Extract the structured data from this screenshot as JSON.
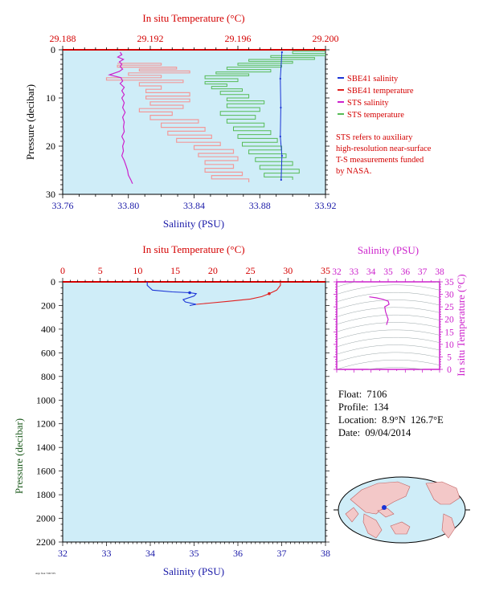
{
  "colors": {
    "plot_bg": "#cfedf8",
    "frame_red": "#d40000",
    "frame_blue": "#1a1aa8",
    "frame_green": "#1f5c1f",
    "magenta": "#cc22cc",
    "sbe_salinity": "#1a33d6",
    "sbe_temperature": "#e02020",
    "sts_salinity": "#cc22cc",
    "sts_temperature": "#55bb55",
    "sts_temperature_upper": "#f29a9a"
  },
  "legend": {
    "items": [
      {
        "label": "SBE41 salinity",
        "color": "#1a33d6"
      },
      {
        "label": "SBE41 temperature",
        "color": "#e02020"
      },
      {
        "label": "STS salinity",
        "color": "#cc22cc"
      },
      {
        "label": "STS temperature",
        "color": "#55bb55"
      }
    ],
    "note_lines": [
      "STS refers to auxiliary",
      "high-resolution near-surface",
      "T-S measurements funded",
      "by NASA."
    ]
  },
  "float_info": {
    "float": "Float:  7106",
    "profile": "Profile:  134",
    "location": "Location:  8.9°N  126.7°E",
    "date": "Date:  09/04/2014"
  },
  "stamp_text": "Argo float 7106 STS",
  "chart_data": [
    {
      "type": "line",
      "panel": "near-surface",
      "title": "",
      "top_axis_label": "In situ Temperature (°C)",
      "top_ticks": [
        "29.188",
        "29.192",
        "29.196",
        "29.200"
      ],
      "top_lim": [
        29.188,
        29.2
      ],
      "xlabel": "Salinity (PSU)",
      "x_ticks": [
        "33.76",
        "33.80",
        "33.84",
        "33.88",
        "33.92"
      ],
      "xlim": [
        33.76,
        33.92
      ],
      "ylabel": "Pressure (decibar)",
      "y_ticks": [
        "0",
        "10",
        "20",
        "30"
      ],
      "ylim": [
        0,
        30
      ],
      "y_inverted": true,
      "grid": false,
      "legend_position": "right",
      "series": [
        {
          "name": "SBE41 salinity",
          "axis": "salinity",
          "points": [
            [
              33.8935,
              0.5
            ],
            [
              33.8925,
              6
            ],
            [
              33.8928,
              12
            ],
            [
              33.8925,
              18
            ],
            [
              33.8935,
              22
            ],
            [
              33.893,
              27
            ]
          ]
        },
        {
          "name": "SBE41 temperature",
          "axis": "temperature",
          "points": [
            [
              29.2,
              0.5
            ]
          ]
        },
        {
          "name": "STS salinity",
          "axis": "salinity",
          "points": [
            [
              33.795,
              0.5
            ],
            [
              33.796,
              1
            ],
            [
              33.7935,
              1.5
            ],
            [
              33.797,
              2
            ],
            [
              33.7945,
              2.5
            ],
            [
              33.796,
              3
            ],
            [
              33.795,
              3.5
            ],
            [
              33.7965,
              4
            ],
            [
              33.7945,
              4.5
            ],
            [
              33.7885,
              5.2
            ],
            [
              33.7955,
              5.8
            ],
            [
              33.7965,
              6.5
            ],
            [
              33.795,
              7
            ],
            [
              33.7975,
              7.8
            ],
            [
              33.796,
              8.5
            ],
            [
              33.7975,
              9.3
            ],
            [
              33.796,
              10
            ],
            [
              33.7975,
              11
            ],
            [
              33.7965,
              12
            ],
            [
              33.798,
              13
            ],
            [
              33.7965,
              14
            ],
            [
              33.7975,
              15
            ],
            [
              33.797,
              16
            ],
            [
              33.7975,
              17
            ],
            [
              33.796,
              18
            ],
            [
              33.7975,
              19
            ],
            [
              33.7965,
              20
            ],
            [
              33.797,
              21
            ],
            [
              33.796,
              22
            ],
            [
              33.7975,
              23
            ],
            [
              33.7985,
              24
            ],
            [
              33.7995,
              25
            ],
            [
              33.8,
              26
            ],
            [
              33.8015,
              27
            ],
            [
              33.8025,
              27.8
            ]
          ]
        },
        {
          "name": "STS temperature",
          "axis": "temperature",
          "points": [
            [
              29.2,
              0.3
            ],
            [
              29.1985,
              0.8
            ],
            [
              29.2,
              1.2
            ],
            [
              29.1975,
              1.6
            ],
            [
              29.1995,
              2.0
            ],
            [
              29.1965,
              2.4
            ],
            [
              29.1985,
              2.8
            ],
            [
              29.196,
              3.2
            ],
            [
              29.198,
              3.6
            ],
            [
              29.1955,
              4.1
            ],
            [
              29.1975,
              4.6
            ],
            [
              29.195,
              5.0
            ],
            [
              29.1965,
              5.4
            ],
            [
              29.1945,
              6.0
            ],
            [
              29.196,
              6.6
            ],
            [
              29.1945,
              7.1
            ],
            [
              29.1955,
              7.6
            ],
            [
              29.1948,
              8.1
            ],
            [
              29.1962,
              8.6
            ],
            [
              29.1952,
              9.3
            ],
            [
              29.1965,
              10.0
            ],
            [
              29.1955,
              10.6
            ],
            [
              29.1972,
              11.2
            ],
            [
              29.1955,
              12.0
            ],
            [
              29.197,
              12.8
            ],
            [
              29.1952,
              13.6
            ],
            [
              29.1968,
              14.4
            ],
            [
              29.1955,
              15.2
            ],
            [
              29.1972,
              16.0
            ],
            [
              29.1958,
              16.8
            ],
            [
              29.1975,
              17.6
            ],
            [
              29.196,
              18.4
            ],
            [
              29.1978,
              19.2
            ],
            [
              29.1962,
              20.0
            ],
            [
              29.198,
              20.8
            ],
            [
              29.1965,
              21.6
            ],
            [
              29.1982,
              22.4
            ],
            [
              29.1968,
              23.2
            ],
            [
              29.1985,
              24.0
            ],
            [
              29.197,
              24.8
            ],
            [
              29.1988,
              25.6
            ],
            [
              29.1972,
              26.4
            ],
            [
              29.1985,
              27.0
            ]
          ]
        },
        {
          "name": "STS temperature",
          "axis": "temperature",
          "points": [
            [
              29.1905,
              2.8
            ],
            [
              29.1925,
              3.2
            ],
            [
              29.1905,
              3.6
            ],
            [
              29.1932,
              4.0
            ],
            [
              29.1915,
              4.4
            ],
            [
              29.1938,
              4.8
            ],
            [
              29.191,
              5.3
            ],
            [
              29.1925,
              5.8
            ],
            [
              29.19,
              6.3
            ],
            [
              29.1935,
              6.8
            ],
            [
              29.1915,
              7.5
            ],
            [
              29.1925,
              8.2
            ],
            [
              29.1918,
              8.9
            ],
            [
              29.1938,
              9.6
            ],
            [
              29.1918,
              10.2
            ],
            [
              29.1938,
              10.8
            ],
            [
              29.192,
              11.5
            ],
            [
              29.1935,
              12.2
            ],
            [
              29.1915,
              12.9
            ],
            [
              29.193,
              13.6
            ],
            [
              29.192,
              14.5
            ],
            [
              29.1942,
              15.2
            ],
            [
              29.1925,
              16.1
            ],
            [
              29.1945,
              16.9
            ],
            [
              29.1928,
              17.7
            ],
            [
              29.1948,
              18.4
            ],
            [
              29.1932,
              19.2
            ],
            [
              29.1952,
              19.9
            ],
            [
              29.194,
              20.7
            ],
            [
              29.1958,
              21.5
            ],
            [
              29.1942,
              22.2
            ],
            [
              29.196,
              23.0
            ],
            [
              29.1945,
              23.8
            ],
            [
              29.1958,
              24.6
            ],
            [
              29.1945,
              25.4
            ],
            [
              29.1962,
              26.1
            ],
            [
              29.1948,
              26.8
            ],
            [
              29.1965,
              27.5
            ]
          ]
        }
      ]
    },
    {
      "type": "line",
      "panel": "full-profile",
      "title": "",
      "top_axis_label": "In situ Temperature (°C)",
      "top_ticks": [
        "0",
        "5",
        "10",
        "15",
        "20",
        "25",
        "30",
        "35"
      ],
      "top_lim": [
        0,
        35
      ],
      "xlabel": "Salinity (PSU)",
      "x_ticks": [
        "32",
        "33",
        "34",
        "35",
        "36",
        "37",
        "38"
      ],
      "xlim": [
        32,
        38
      ],
      "ylabel": "Pressure (decibar)",
      "y_ticks": [
        "0",
        "200",
        "400",
        "600",
        "800",
        "1000",
        "1200",
        "1400",
        "1600",
        "1800",
        "2000",
        "2200"
      ],
      "ylim": [
        0,
        2200
      ],
      "y_inverted": true,
      "grid": false,
      "series": [
        {
          "name": "SBE41 salinity",
          "axis": "salinity",
          "points": [
            [
              33.93,
              0
            ],
            [
              33.93,
              30
            ],
            [
              34.05,
              70
            ],
            [
              34.5,
              85
            ],
            [
              34.9,
              92
            ],
            [
              35.05,
              100
            ],
            [
              35.0,
              120
            ],
            [
              34.75,
              150
            ],
            [
              34.8,
              170
            ],
            [
              35.05,
              190
            ],
            [
              34.9,
              200
            ]
          ]
        },
        {
          "name": "SBE41 temperature",
          "axis": "temperature",
          "points": [
            [
              29.0,
              0
            ],
            [
              29.0,
              30
            ],
            [
              28.5,
              70
            ],
            [
              27.5,
              100
            ],
            [
              26.5,
              125
            ],
            [
              25.0,
              145
            ],
            [
              22.0,
              165
            ],
            [
              19.5,
              180
            ],
            [
              17.8,
              190
            ]
          ]
        }
      ]
    },
    {
      "type": "scatter",
      "panel": "T-S diagram",
      "title": "",
      "top_axis_label": "Salinity (PSU)",
      "top_ticks": [
        "32",
        "33",
        "34",
        "35",
        "36",
        "37",
        "38"
      ],
      "xlim": [
        32,
        38
      ],
      "right_axis_label": "In situ Temperature (°C)",
      "right_ticks": [
        "0",
        "5",
        "10",
        "15",
        "20",
        "25",
        "30",
        "35"
      ],
      "ylim": [
        0,
        35
      ],
      "grid": false,
      "series": [
        {
          "name": "SBE41",
          "points": [
            [
              33.9,
              29.0
            ],
            [
              34.3,
              28.6
            ],
            [
              34.7,
              28.0
            ],
            [
              35.0,
              27.3
            ],
            [
              35.05,
              26.0
            ],
            [
              34.8,
              25.0
            ],
            [
              34.85,
              23.0
            ],
            [
              35.0,
              20.0
            ],
            [
              34.9,
              17.8
            ]
          ]
        }
      ]
    }
  ]
}
